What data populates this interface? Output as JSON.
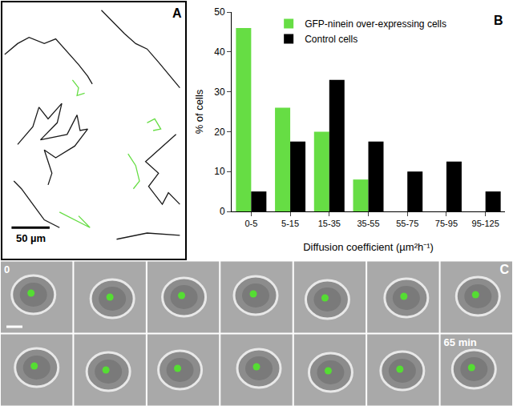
{
  "chart_data": [
    {
      "panel": "A",
      "type": "line",
      "tick_labels": false,
      "grid": false,
      "xlim": [
        0,
        240
      ],
      "ylim": [
        0,
        330
      ],
      "scale_bar": {
        "length": 50,
        "label": "50 µm"
      },
      "series": [
        {
          "color": "#1a1a1a",
          "x": [
            3,
            20,
            35,
            55,
            70,
            85,
            100,
            112,
            118
          ],
          "y": [
            263,
            277,
            285,
            277,
            283,
            267,
            250,
            235,
            225
          ]
        },
        {
          "color": "#1a1a1a",
          "x": [
            130,
            145,
            160,
            175,
            190,
            205,
            220,
            233
          ],
          "y": [
            320,
            305,
            290,
            277,
            270,
            253,
            235,
            220
          ]
        },
        {
          "color": "#1a1a1a",
          "x": [
            20,
            40,
            48,
            60,
            78,
            72,
            50,
            85,
            98,
            102,
            112,
            95,
            70,
            55,
            65,
            60
          ],
          "y": [
            147,
            170,
            195,
            180,
            200,
            175,
            153,
            160,
            185,
            165,
            167,
            145,
            130,
            140,
            110,
            95
          ]
        },
        {
          "color": "#1a1a1a",
          "x": [
            228,
            205,
            188,
            205,
            192,
            210,
            218,
            233
          ],
          "y": [
            160,
            140,
            125,
            110,
            93,
            70,
            85,
            70
          ]
        },
        {
          "color": "#1a1a1a",
          "x": [
            150,
            190,
            233
          ],
          "y": [
            25,
            33,
            30
          ]
        },
        {
          "color": "#1a1a1a",
          "x": [
            15,
            25,
            40,
            55,
            75
          ],
          "y": [
            100,
            90,
            70,
            50,
            40
          ]
        },
        {
          "color": "#66dd44",
          "x": [
            92,
            100,
            98,
            108
          ],
          "y": [
            230,
            220,
            210,
            213
          ]
        },
        {
          "color": "#66dd44",
          "x": [
            190,
            200,
            208,
            198
          ],
          "y": [
            175,
            180,
            167,
            165
          ]
        },
        {
          "color": "#66dd44",
          "x": [
            165,
            175,
            180,
            172
          ],
          "y": [
            135,
            120,
            100,
            90
          ]
        },
        {
          "color": "#66dd44",
          "x": [
            75,
            95,
            115,
            100
          ],
          "y": [
            60,
            50,
            40,
            55
          ]
        }
      ]
    },
    {
      "panel": "B",
      "type": "bar",
      "legend": "top",
      "x_label": "Diffusion coefficient (µm²h⁻¹)",
      "y_label": "% of cells",
      "categories": [
        "0-5",
        "5-15",
        "15-35",
        "35-55",
        "55-75",
        "75-95",
        "95-125"
      ],
      "series": [
        {
          "name": "GFP-ninein over-expressing cells",
          "color": "#66dd44",
          "values": [
            46,
            26,
            20,
            8,
            0,
            0,
            0
          ]
        },
        {
          "name": "Control cells",
          "color": "#000000",
          "values": [
            5,
            17.5,
            33,
            17.5,
            10,
            12.5,
            5
          ]
        }
      ],
      "ylim": [
        0,
        50
      ],
      "yticks": [
        0,
        10,
        20,
        30,
        40,
        50
      ],
      "grid": false
    }
  ],
  "panel_c": {
    "panel": "C",
    "frame_labels": [
      "0",
      null,
      null,
      null,
      null,
      null,
      null,
      null,
      null,
      null,
      null,
      null,
      null,
      "65 min"
    ]
  }
}
